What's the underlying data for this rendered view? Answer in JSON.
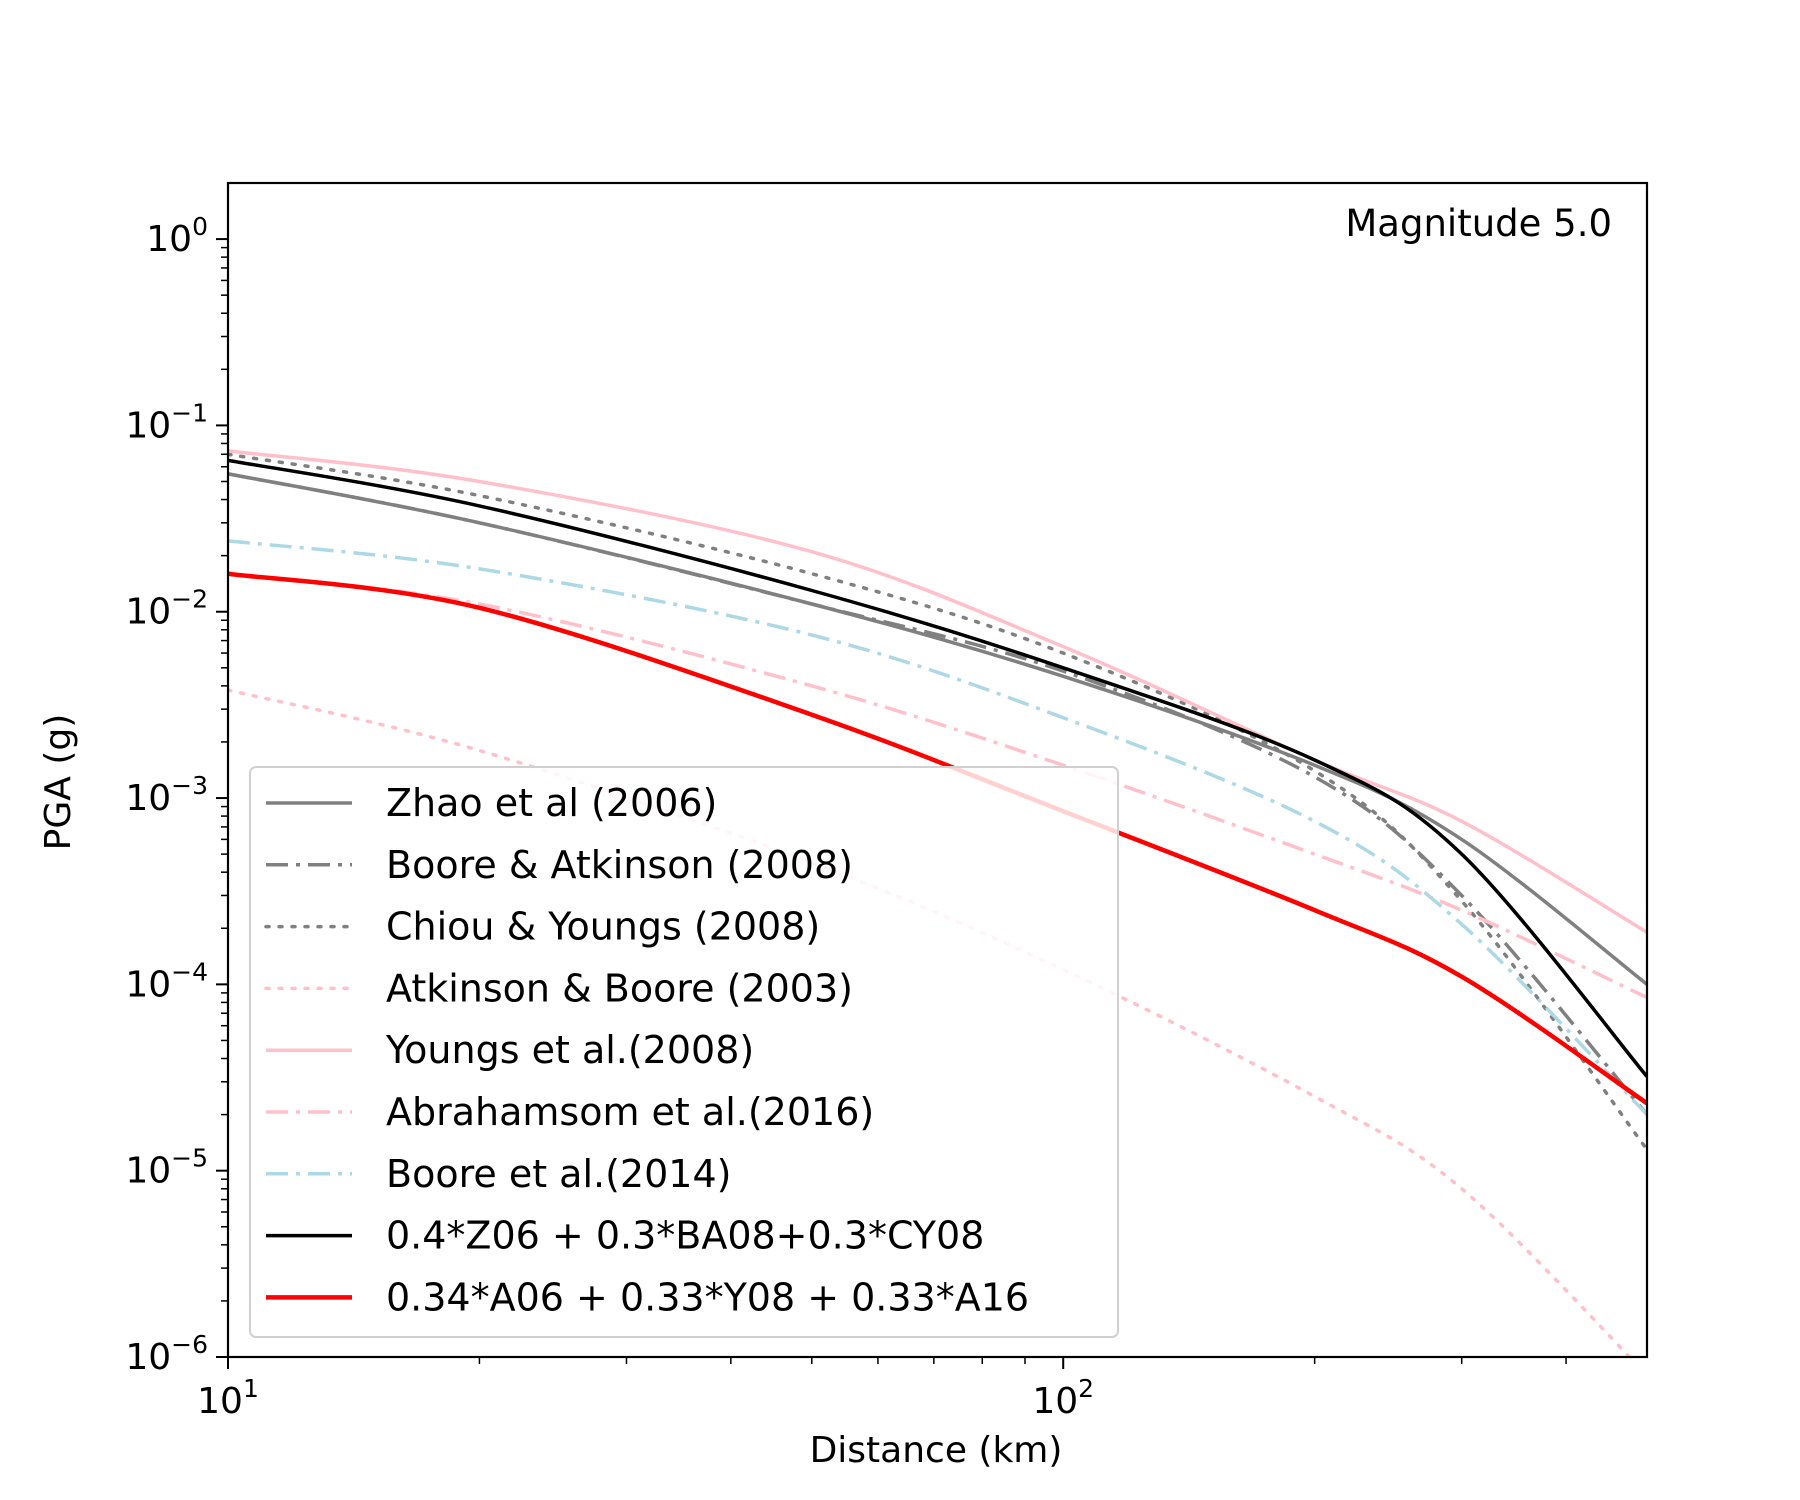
{
  "chart_data": {
    "type": "line",
    "annotation": "Magnitude 5.0",
    "xlabel": "Distance (km)",
    "ylabel": "PGA (g)",
    "xscale": "log",
    "yscale": "log",
    "xlim": [
      10,
      500
    ],
    "ylim": [
      1e-06,
      2
    ],
    "grid": false,
    "legend_position": "lower-left",
    "x_ticks": [
      {
        "value": 10,
        "base": "10",
        "exp": "1"
      },
      {
        "value": 100,
        "base": "10",
        "exp": "2"
      }
    ],
    "y_ticks": [
      {
        "value": 1,
        "base": "10",
        "exp": "0"
      },
      {
        "value": 0.1,
        "base": "10",
        "exp": "−1"
      },
      {
        "value": 0.01,
        "base": "10",
        "exp": "−2"
      },
      {
        "value": 0.001,
        "base": "10",
        "exp": "−3"
      },
      {
        "value": 0.0001,
        "base": "10",
        "exp": "−4"
      },
      {
        "value": 1e-05,
        "base": "10",
        "exp": "−5"
      },
      {
        "value": 1e-06,
        "base": "10",
        "exp": "−6"
      }
    ],
    "x": [
      10,
      20,
      50,
      100,
      200,
      300,
      500
    ],
    "series": [
      {
        "name": "Zhao et al (2006)",
        "color": "#808080",
        "dash": "solid",
        "width": 3.5,
        "values": [
          0.055,
          0.03,
          0.011,
          0.0045,
          0.0015,
          0.0006,
          0.0001
        ]
      },
      {
        "name": "Boore & Atkinson (2008)",
        "color": "#808080",
        "dash": "dashdot",
        "width": 3.5,
        "values": [
          0.055,
          0.03,
          0.011,
          0.0048,
          0.0013,
          0.0003,
          2e-05
        ]
      },
      {
        "name": "Chiou & Youngs (2008)",
        "color": "#808080",
        "dash": "dotted",
        "width": 3.5,
        "values": [
          0.07,
          0.042,
          0.016,
          0.006,
          0.0014,
          0.00028,
          1.3e-05
        ]
      },
      {
        "name": "Atkinson & Boore (2003)",
        "color": "#ffc0cb",
        "dash": "dotted",
        "width": 3.5,
        "values": [
          0.0038,
          0.0018,
          0.00045,
          0.00012,
          2.5e-05,
          8e-06,
          8e-07
        ]
      },
      {
        "name": "Youngs et al.(2008)",
        "color": "#ffc0cb",
        "dash": "solid",
        "width": 3.5,
        "values": [
          0.073,
          0.05,
          0.021,
          0.0065,
          0.0016,
          0.00075,
          0.00019
        ]
      },
      {
        "name": "Abrahamsom et al.(2016)",
        "color": "#ffc0cb",
        "dash": "dashdot",
        "width": 3.5,
        "values": [
          0.016,
          0.011,
          0.004,
          0.0015,
          0.0005,
          0.00025,
          8.5e-05
        ]
      },
      {
        "name": "Boore et al.(2014)",
        "color": "#add8e6",
        "dash": "dashdot",
        "width": 3.5,
        "values": [
          0.024,
          0.017,
          0.0075,
          0.0027,
          0.00075,
          0.00021,
          2e-05
        ]
      },
      {
        "name": "0.4*Z06 + 0.3*BA08+0.3*CY08",
        "color": "#000000",
        "dash": "solid",
        "width": 3.5,
        "values": [
          0.065,
          0.037,
          0.013,
          0.005,
          0.0016,
          0.0005,
          3.2e-05
        ]
      },
      {
        "name": "0.34*A06 + 0.33*Y08 + 0.33*A16",
        "color": "#ff0000",
        "dash": "solid",
        "width": 4.5,
        "values": [
          0.016,
          0.0105,
          0.0028,
          0.00085,
          0.00025,
          0.00011,
          2.3e-05
        ]
      }
    ]
  }
}
